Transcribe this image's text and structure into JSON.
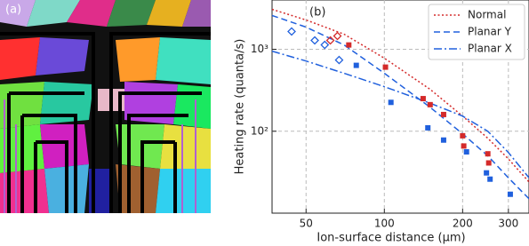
{
  "panel_a": {
    "label": "(a)"
  },
  "chart_data": {
    "type": "line",
    "panel_label": "(b)",
    "xlabel": "Ion-surface distance (µm)",
    "ylabel": "Heating rate (quanta/s)",
    "xscale": "log",
    "yscale": "log",
    "grid": true,
    "legend": "upper right",
    "xlim": [
      37,
      360
    ],
    "ylim": [
      10,
      4000
    ],
    "xticks": [
      50,
      100,
      200,
      300
    ],
    "yticks": [
      {
        "value": 100,
        "label": "10²"
      },
      {
        "value": 1000,
        "label": "10³"
      }
    ],
    "x": [
      37,
      50,
      70,
      100,
      150,
      200,
      250,
      300,
      360
    ],
    "series": [
      {
        "name": "Normal",
        "color": "#d42a2a",
        "dash": "dotted",
        "values": [
          3080,
          2280,
          1530,
          780,
          325,
          153,
          82,
          46,
          24
        ]
      },
      {
        "name": "Planar Y",
        "color": "#2060dd",
        "dash": "dashed",
        "values": [
          2590,
          1870,
          1130,
          510,
          196,
          93,
          50,
          27,
          15
        ]
      },
      {
        "name": "Planar X",
        "color": "#2060dd",
        "dash": "dashdot",
        "values": [
          950,
          720,
          510,
          350,
          220,
          153,
          100,
          55,
          27
        ]
      }
    ],
    "markers": [
      {
        "color": "#d42a2a",
        "marker": "diamond-open",
        "x": [
          62,
          66
        ],
        "values": [
          1285,
          1455
        ]
      },
      {
        "color": "#d42a2a",
        "marker": "square",
        "x": [
          73,
          101,
          141,
          150,
          169,
          200,
          202,
          250,
          252
        ],
        "values": [
          1130,
          606,
          250,
          211,
          160,
          88,
          66,
          53,
          41
        ]
      },
      {
        "color": "#2060dd",
        "marker": "diamond-open",
        "x": [
          44,
          54,
          59,
          67
        ],
        "values": [
          1650,
          1285,
          1133,
          740
        ]
      },
      {
        "color": "#2060dd",
        "marker": "square",
        "x": [
          78,
          106,
          147,
          169,
          207,
          247,
          255,
          305
        ],
        "values": [
          637,
          225,
          110,
          78,
          56,
          31,
          26,
          17
        ]
      }
    ]
  }
}
